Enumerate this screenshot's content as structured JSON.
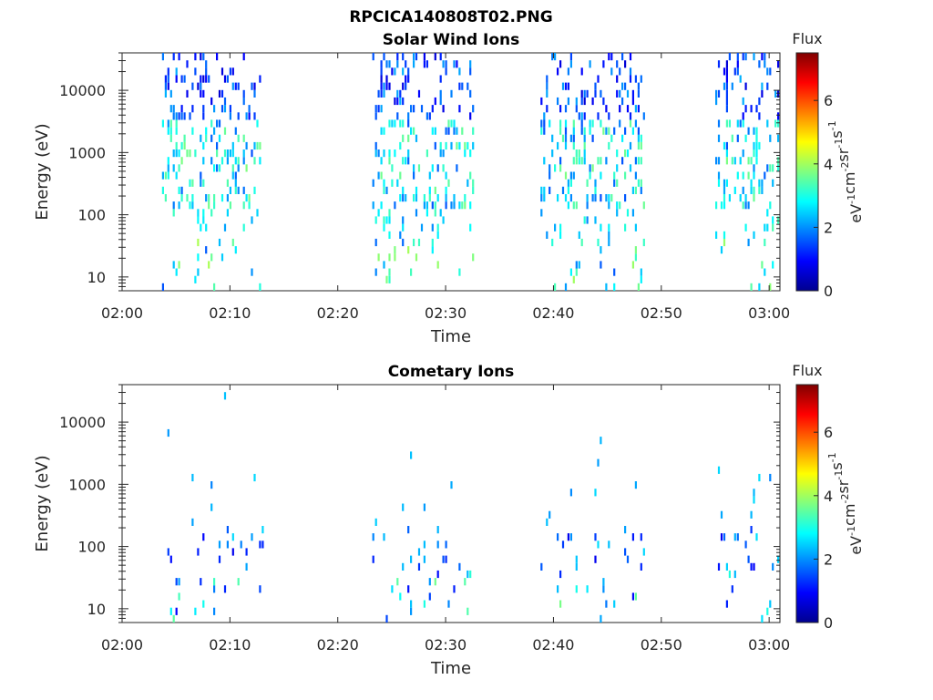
{
  "figure": {
    "title": "RPCICA140808T02.PNG"
  },
  "colormap": "jet",
  "chart_data": [
    {
      "type": "heatmap",
      "title": "Solar Wind Ions",
      "xlabel": "Time",
      "ylabel": "Energy (eV)",
      "yscale": "log",
      "ylim": [
        6,
        40000
      ],
      "xlim": [
        "02:00",
        "03:01"
      ],
      "x_ticks": [
        "02:00",
        "02:10",
        "02:20",
        "02:30",
        "02:40",
        "02:50",
        "03:00"
      ],
      "y_ticks": [
        "10",
        "100",
        "1000",
        "10000"
      ],
      "colorbar": {
        "label": "Flux",
        "units": "eV^-1 cm^-2 sr^-1 s^-1",
        "range": [
          0,
          7.5
        ],
        "ticks": [
          "0",
          "2",
          "4",
          "6"
        ]
      },
      "bursts": [
        {
          "start": "02:03.7",
          "end": "02:13.1"
        },
        {
          "start": "02:23.2",
          "end": "02:32.6"
        },
        {
          "start": "02:38.8",
          "end": "02:48.5"
        },
        {
          "start": "02:55.0",
          "end": "03:01.0"
        }
      ]
    },
    {
      "type": "heatmap",
      "title": "Cometary Ions",
      "xlabel": "Time",
      "ylabel": "Energy (eV)",
      "yscale": "log",
      "ylim": [
        6,
        40000
      ],
      "xlim": [
        "02:00",
        "03:01"
      ],
      "x_ticks": [
        "02:00",
        "02:10",
        "02:20",
        "02:30",
        "02:40",
        "02:50",
        "03:00"
      ],
      "y_ticks": [
        "10",
        "100",
        "1000",
        "10000"
      ],
      "colorbar": {
        "label": "Flux",
        "units": "eV^-1 cm^-2 sr^-1 s^-1",
        "range": [
          0,
          7.5
        ],
        "ticks": [
          "0",
          "2",
          "4",
          "6"
        ]
      },
      "bursts": [
        {
          "start": "02:03.7",
          "end": "02:13.1"
        },
        {
          "start": "02:23.2",
          "end": "02:32.6"
        },
        {
          "start": "02:38.8",
          "end": "02:48.5"
        },
        {
          "start": "02:55.0",
          "end": "03:01.0"
        }
      ]
    }
  ]
}
